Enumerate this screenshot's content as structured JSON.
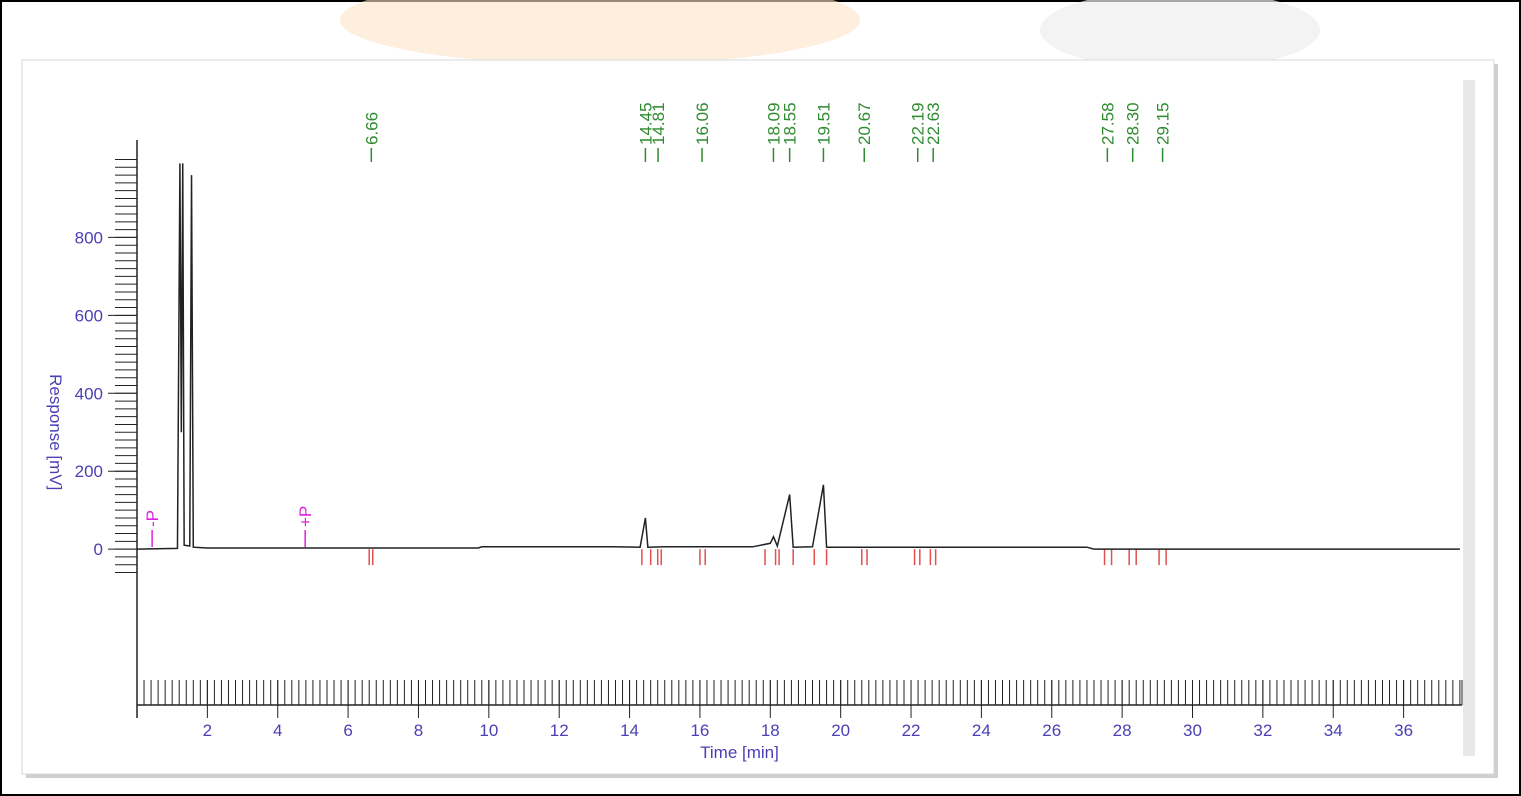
{
  "chart_data": {
    "type": "line",
    "xlabel": "Time [min]",
    "ylabel": "Response [mV]",
    "color": "#222222",
    "x": [
      0,
      1.15,
      1.22,
      1.26,
      1.3,
      1.34,
      1.5,
      1.55,
      1.6,
      2,
      9.7,
      9.8,
      13.5,
      14.3,
      14.45,
      14.52,
      15,
      17.5,
      18.0,
      18.09,
      18.2,
      18.55,
      18.65,
      19.2,
      19.51,
      19.6,
      27,
      27.2,
      37.6
    ],
    "values": [
      0,
      2,
      990,
      300,
      990,
      10,
      8,
      960,
      5,
      3,
      3,
      6,
      6,
      5,
      80,
      5,
      6,
      6,
      15,
      32,
      8,
      140,
      5,
      6,
      165,
      5,
      5,
      0,
      0
    ],
    "xlim": [
      0,
      37.66
    ],
    "ylim": [
      -400,
      1050
    ],
    "xticks": [
      2,
      4,
      6,
      8,
      10,
      12,
      14,
      16,
      18,
      20,
      22,
      24,
      26,
      28,
      30,
      32,
      34,
      36
    ],
    "yticks": [
      0,
      200,
      400,
      600,
      800
    ],
    "xminorticks": [
      0,
      0.2,
      0.4,
      0.6,
      0.8,
      1,
      1.2,
      1.4,
      1.6,
      1.8,
      2,
      2.2,
      2.4,
      2.6,
      2.8,
      3,
      3.2,
      3.4,
      3.6,
      3.8,
      4,
      4.2,
      4.4,
      4.6,
      4.8,
      5,
      5.2,
      5.4,
      5.6,
      5.8,
      6,
      6.2,
      6.4,
      6.6,
      6.8,
      7,
      7.2,
      7.4,
      7.6,
      7.8,
      8,
      8.2,
      8.4,
      8.6,
      8.8,
      9,
      9.2,
      9.4,
      9.6,
      9.8,
      10,
      10.2,
      10.4,
      10.6,
      10.8,
      11,
      11.2,
      11.4,
      11.6,
      11.8,
      12,
      12.2,
      12.4,
      12.6,
      12.8,
      13,
      13.2,
      13.4,
      13.6,
      13.8,
      14,
      14.2,
      14.4,
      14.6,
      14.8,
      15,
      15.2,
      15.4,
      15.6,
      15.8,
      16,
      16.2,
      16.4,
      16.6,
      16.8,
      17,
      17.2,
      17.4,
      17.6,
      17.8,
      18,
      18.2,
      18.4,
      18.6,
      18.8,
      19,
      19.2,
      19.4,
      19.6,
      19.8,
      20,
      20.2,
      20.4,
      20.6,
      20.8,
      21,
      21.2,
      21.4,
      21.6,
      21.8,
      22,
      22.2,
      22.4,
      22.6,
      22.8,
      23,
      23.2,
      23.4,
      23.6,
      23.8,
      24,
      24.2,
      24.4,
      24.6,
      24.8,
      25,
      25.2,
      25.4,
      25.6,
      25.8,
      26,
      26.2,
      26.4,
      26.6,
      26.8,
      27,
      27.2,
      27.4,
      27.6,
      27.8,
      28,
      28.2,
      28.4,
      28.6,
      28.8,
      29,
      29.2,
      29.4,
      29.6,
      29.8,
      30,
      30.2,
      30.4,
      30.6,
      30.8,
      31,
      31.2,
      31.4,
      31.6,
      31.8,
      32,
      32.2,
      32.4,
      32.6,
      32.8,
      33,
      33.2,
      33.4,
      33.6,
      33.8,
      34,
      34.2,
      34.4,
      34.6,
      34.8,
      35,
      35.2,
      35.4,
      35.6,
      35.8,
      36,
      36.2,
      36.4,
      36.6,
      36.8,
      37,
      37.2,
      37.4,
      37.6
    ],
    "yminorticks": [
      -60,
      -40,
      -20,
      0,
      20,
      40,
      60,
      80,
      100,
      120,
      140,
      160,
      180,
      200,
      220,
      240,
      260,
      280,
      300,
      320,
      340,
      360,
      380,
      400,
      420,
      440,
      460,
      480,
      500,
      520,
      540,
      560,
      580,
      600,
      620,
      640,
      660,
      680,
      700,
      720,
      740,
      760,
      780,
      800,
      820,
      840,
      860,
      880,
      900,
      920,
      940,
      960,
      980,
      1000
    ],
    "peaks": [
      {
        "value": 6.66,
        "label": "6.66"
      },
      {
        "value": 14.45,
        "label": "14.45"
      },
      {
        "value": 14.81,
        "label": "14.81"
      },
      {
        "value": 16.06,
        "label": "16.06"
      },
      {
        "value": 18.09,
        "label": "18.09"
      },
      {
        "value": 18.55,
        "label": "18.55"
      },
      {
        "value": 19.51,
        "label": "19.51"
      },
      {
        "value": 20.67,
        "label": "20.67"
      },
      {
        "value": 22.19,
        "label": "22.19"
      },
      {
        "value": 22.63,
        "label": "22.63"
      },
      {
        "value": 27.58,
        "label": "27.58"
      },
      {
        "value": 28.3,
        "label": "28.30"
      },
      {
        "value": 29.15,
        "label": "29.15"
      }
    ],
    "peak_color": "#2e8b2e",
    "events": [
      {
        "value": 0.43,
        "label": "-P"
      },
      {
        "value": 4.78,
        "label": "+P"
      }
    ],
    "event_color": "#e020e0",
    "integration_marks": [
      6.6,
      6.7,
      14.35,
      14.6,
      14.8,
      14.9,
      16.0,
      16.15,
      17.85,
      18.15,
      18.25,
      18.65,
      19.25,
      19.6,
      20.6,
      20.75,
      22.1,
      22.25,
      22.55,
      22.7,
      27.5,
      27.7,
      28.2,
      28.4,
      29.05,
      29.25
    ],
    "integration_color": "#e05050",
    "axis_label_color": "#4b3fb3"
  }
}
